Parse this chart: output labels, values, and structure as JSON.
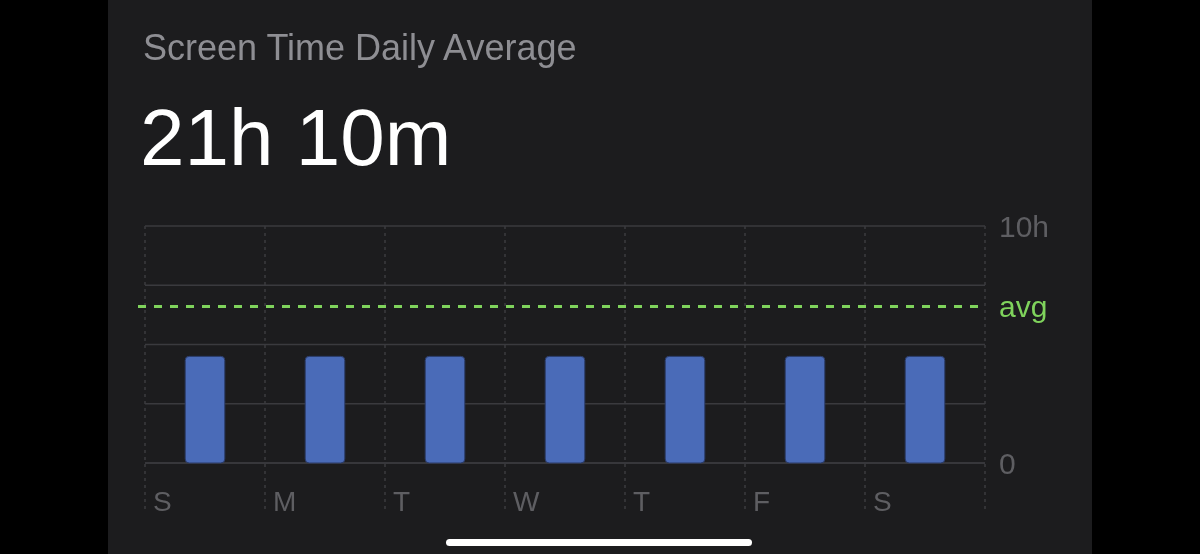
{
  "chart_data": {
    "type": "bar",
    "title": "Screen Time Daily Average",
    "subtitle": "21h 10m",
    "categories": [
      "S",
      "M",
      "T",
      "W",
      "T",
      "F",
      "S"
    ],
    "values": [
      4.5,
      4.5,
      4.5,
      4.5,
      4.5,
      4.5,
      4.5
    ],
    "color": "#4a6bb8",
    "ylim": [
      0,
      10
    ],
    "yticks": [
      {
        "value": 0,
        "label": "0"
      },
      {
        "value": 2.5,
        "label": null
      },
      {
        "value": 5,
        "label": null
      },
      {
        "value": 7.5,
        "label": null
      },
      {
        "value": 10,
        "label": "10h"
      }
    ],
    "grid": true,
    "ref_lines": [
      {
        "axis": "y",
        "value": 6.6,
        "label": "avg",
        "color": "#7fd35c",
        "line_style": "dashed"
      }
    ]
  }
}
